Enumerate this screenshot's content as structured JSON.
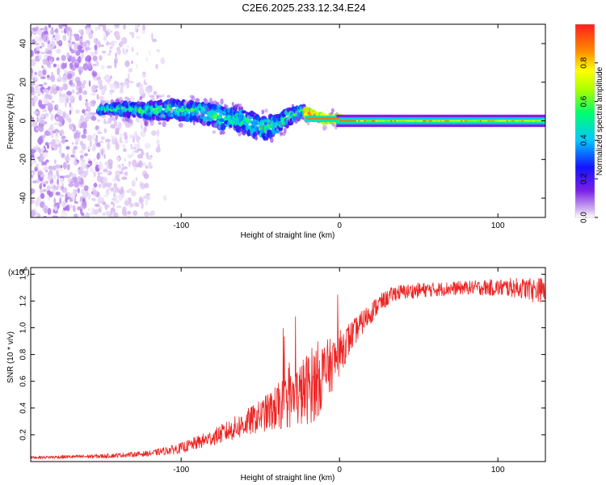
{
  "title": "C2E6.2025.233.12.34.E24",
  "chart_data": [
    {
      "type": "heatmap",
      "name": "spectrogram",
      "xlabel": "Height of straight line (km)",
      "ylabel": "Frequency (Hz)",
      "xlim": [
        -195,
        130
      ],
      "ylim": [
        -50,
        50
      ],
      "x_ticks": [
        -100,
        0,
        100
      ],
      "x_tick_labels": [
        "-100",
        "0",
        "100"
      ],
      "y_ticks": [
        -40,
        -20,
        0,
        20,
        40
      ],
      "y_tick_labels": [
        "-40",
        "-20",
        "0",
        "20",
        "40"
      ],
      "colorbar": {
        "label": "Normalized spectral amplitude",
        "range": [
          0,
          1
        ],
        "ticks": [
          0.0,
          0.2,
          0.4,
          0.6,
          0.8
        ],
        "tick_labels": [
          "0.0",
          "0.2",
          "0.4",
          "0.6",
          "0.8"
        ],
        "colors": [
          "#ffffff",
          "#d2b4f0",
          "#7a1fe6",
          "#1414ff",
          "#00c8ff",
          "#00ff6e",
          "#aaff00",
          "#ffff00",
          "#ff8c00",
          "#ff1e1e"
        ]
      },
      "ridge": {
        "description": "frequency center of main band vs height",
        "x": [
          -150,
          -135,
          -120,
          -105,
          -90,
          -75,
          -60,
          -50,
          -40,
          -32,
          -24,
          -16,
          -10,
          -4,
          0,
          10,
          40,
          80,
          130
        ],
        "y": [
          6,
          6,
          5,
          6,
          5,
          2,
          0,
          -4,
          -2,
          2,
          5,
          3,
          1,
          1,
          1,
          0,
          0,
          0,
          0
        ],
        "half_width": [
          2,
          3,
          4,
          5,
          5,
          6,
          6,
          6,
          5,
          4,
          3,
          2,
          2,
          1.5,
          1.5,
          1,
          1,
          1,
          1
        ]
      }
    },
    {
      "type": "line",
      "name": "snr",
      "xlabel": "Height of straight line (km)",
      "ylabel": "SNR (10 * v/v)",
      "y_scale_label": "(x10",
      "y_scale_exp": "4",
      "xlim": [
        -195,
        130
      ],
      "ylim": [
        0,
        1.45
      ],
      "x_ticks": [
        -100,
        0,
        100
      ],
      "x_tick_labels": [
        "-100",
        "0",
        "100"
      ],
      "y_ticks": [
        0.2,
        0.4,
        0.6,
        0.8,
        1.0,
        1.2,
        1.4
      ],
      "y_tick_labels": [
        "0.2",
        "0.4",
        "0.6",
        "0.8",
        "1.0",
        "1.2",
        "1.4"
      ],
      "series": [
        {
          "name": "SNR",
          "color": "#ee2222",
          "trend_x": [
            -195,
            -150,
            -120,
            -100,
            -80,
            -60,
            -40,
            -25,
            -15,
            -5,
            5,
            15,
            25,
            35,
            50,
            80,
            110,
            130
          ],
          "trend_y": [
            0.03,
            0.04,
            0.06,
            0.1,
            0.18,
            0.28,
            0.4,
            0.5,
            0.6,
            0.72,
            0.9,
            1.05,
            1.18,
            1.26,
            1.28,
            1.3,
            1.3,
            1.28
          ],
          "noise_x": [
            -195,
            -120,
            -80,
            -50,
            -30,
            -15,
            -5,
            10,
            30,
            80,
            120,
            130
          ],
          "noise_amp": [
            0.01,
            0.02,
            0.06,
            0.12,
            0.22,
            0.3,
            0.2,
            0.1,
            0.06,
            0.05,
            0.08,
            0.1
          ]
        }
      ]
    }
  ]
}
